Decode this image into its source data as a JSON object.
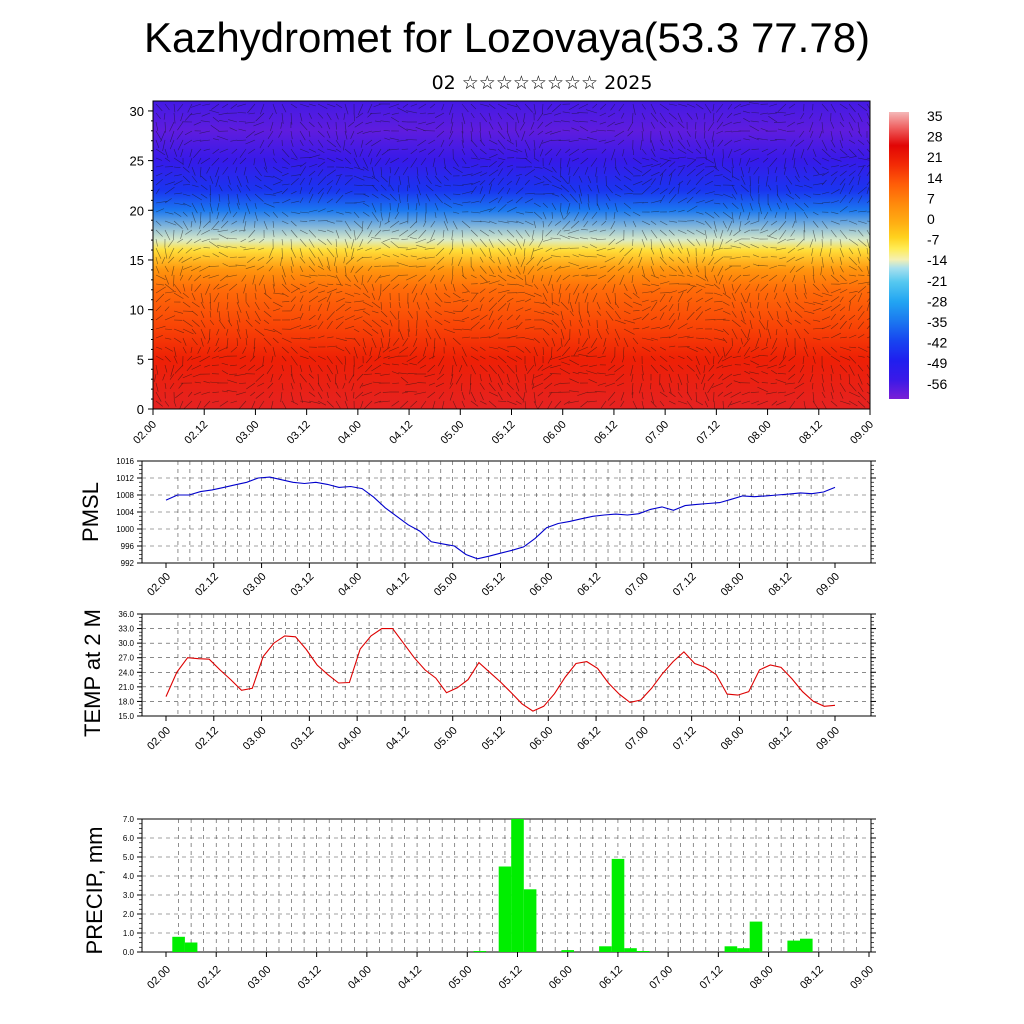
{
  "page": {
    "title": "Kazhydromet for Lozovaya(53.3 77.78)",
    "subtitle": "02 ☆☆☆☆☆☆☆☆ 2025"
  },
  "chart_data": [
    {
      "type": "heatmap",
      "xlabel": "",
      "ylabel": "",
      "x_ticks": [
        "02.00",
        "02.12",
        "03.00",
        "03.12",
        "04.00",
        "04.12",
        "05.00",
        "05.12",
        "06.00",
        "06.12",
        "07.00",
        "07.12",
        "08.00",
        "08.12",
        "09.00"
      ],
      "y_ticks": [
        0,
        5,
        10,
        15,
        20,
        25,
        30
      ],
      "ylim": [
        0,
        31
      ],
      "colorbar_labels": [
        35,
        28,
        21,
        14,
        7,
        0,
        -7,
        -14,
        -21,
        -28,
        -35,
        -42,
        -49,
        -56
      ],
      "colorbar_range": [
        -63,
        40
      ],
      "profile_levels": [
        0,
        5,
        8,
        12,
        14,
        16,
        17,
        20,
        22,
        25,
        28,
        31
      ],
      "profile_values": [
        30,
        23,
        18,
        12,
        5,
        -7,
        -14,
        -35,
        -45,
        -55,
        -60,
        -57
      ],
      "overlay": "wind vectors"
    },
    {
      "type": "line",
      "ylabel": "PMSL",
      "ylim": [
        992,
        1016
      ],
      "y_ticks": [
        992,
        996,
        1000,
        1004,
        1008,
        1012,
        1016
      ],
      "x_ticks": [
        "02.00",
        "02.12",
        "03.00",
        "03.12",
        "04.00",
        "04.12",
        "05.00",
        "05.12",
        "06.00",
        "06.12",
        "07.00",
        "07.12",
        "08.00",
        "08.12",
        "09.00"
      ],
      "color": "#0000cc",
      "series": [
        {
          "values": [
            1006.8,
            1008,
            1008,
            1008.8,
            1009.2,
            1009.8,
            1010.4,
            1011,
            1012,
            1012.2,
            1011.6,
            1011,
            1010.7,
            1011,
            1010.5,
            1009.8,
            1010,
            1009.5,
            1007.5,
            1005,
            1003,
            1001,
            999.5,
            997,
            996.5,
            996,
            994,
            993,
            993.6,
            994.3,
            995,
            995.8,
            997.8,
            1000.3,
            1001.3,
            1001.8,
            1002.4,
            1003,
            1003.3,
            1003.5,
            1003.3,
            1003.6,
            1004.6,
            1005.2,
            1004.4,
            1005.5,
            1005.8,
            1006,
            1006.2,
            1007,
            1007.8,
            1007.6,
            1007.8,
            1008,
            1008.2,
            1008.5,
            1008.3,
            1008.7,
            1009.8
          ]
        }
      ]
    },
    {
      "type": "line",
      "ylabel": "TEMP at 2 M",
      "ylim": [
        15,
        36
      ],
      "y_ticks": [
        "15.0",
        "18.0",
        "21.0",
        "24.0",
        "27.0",
        "30.0",
        "33.0",
        "36.0"
      ],
      "x_ticks": [
        "02.00",
        "02.12",
        "03.00",
        "03.12",
        "04.00",
        "04.12",
        "05.00",
        "05.12",
        "06.00",
        "06.12",
        "07.00",
        "07.12",
        "08.00",
        "08.12",
        "09.00"
      ],
      "color": "#dd0000",
      "series": [
        {
          "values": [
            19,
            24,
            27,
            26.8,
            26.7,
            24.5,
            22.5,
            20.3,
            20.7,
            27.2,
            30,
            31.5,
            31.3,
            28.7,
            25.5,
            23.5,
            21.8,
            21.9,
            28.8,
            31.5,
            33,
            33,
            30,
            27,
            24.5,
            22.8,
            19.8,
            20.8,
            22.5,
            26,
            24,
            22,
            19.8,
            17.5,
            16,
            17,
            19.6,
            23,
            25.8,
            26.2,
            24.8,
            21.8,
            19.5,
            17.8,
            18.3,
            20.7,
            23.7,
            26.2,
            28.2,
            25.8,
            25,
            23.5,
            19.5,
            19.3,
            20,
            24.5,
            25.5,
            25,
            22.7,
            20,
            18,
            17,
            17.2
          ]
        }
      ]
    },
    {
      "type": "bar",
      "ylabel": "PRECIP, mm",
      "ylim": [
        0,
        7
      ],
      "y_ticks": [
        "0.0",
        "1.0",
        "2.0",
        "3.0",
        "4.0",
        "5.0",
        "6.0",
        "7.0"
      ],
      "x_ticks": [
        "02.00",
        "02.12",
        "03.00",
        "03.12",
        "04.00",
        "04.12",
        "05.00",
        "05.12",
        "06.00",
        "06.12",
        "07.00",
        "07.12",
        "08.00",
        "08.12",
        "09.00"
      ],
      "color": "#00ee00",
      "bars": [
        {
          "t": 1,
          "v": 0.8
        },
        {
          "t": 2,
          "v": 0.5
        },
        {
          "t": 25,
          "v": 0.05
        },
        {
          "t": 27,
          "v": 4.5
        },
        {
          "t": 28,
          "v": 7.0
        },
        {
          "t": 29,
          "v": 3.3
        },
        {
          "t": 32,
          "v": 0.1
        },
        {
          "t": 35,
          "v": 0.3
        },
        {
          "t": 36,
          "v": 4.9
        },
        {
          "t": 37,
          "v": 0.2
        },
        {
          "t": 38,
          "v": 0.05
        },
        {
          "t": 45,
          "v": 0.3
        },
        {
          "t": 46,
          "v": 0.2
        },
        {
          "t": 47,
          "v": 1.6
        },
        {
          "t": 50,
          "v": 0.6
        },
        {
          "t": 51,
          "v": 0.7
        }
      ]
    }
  ]
}
